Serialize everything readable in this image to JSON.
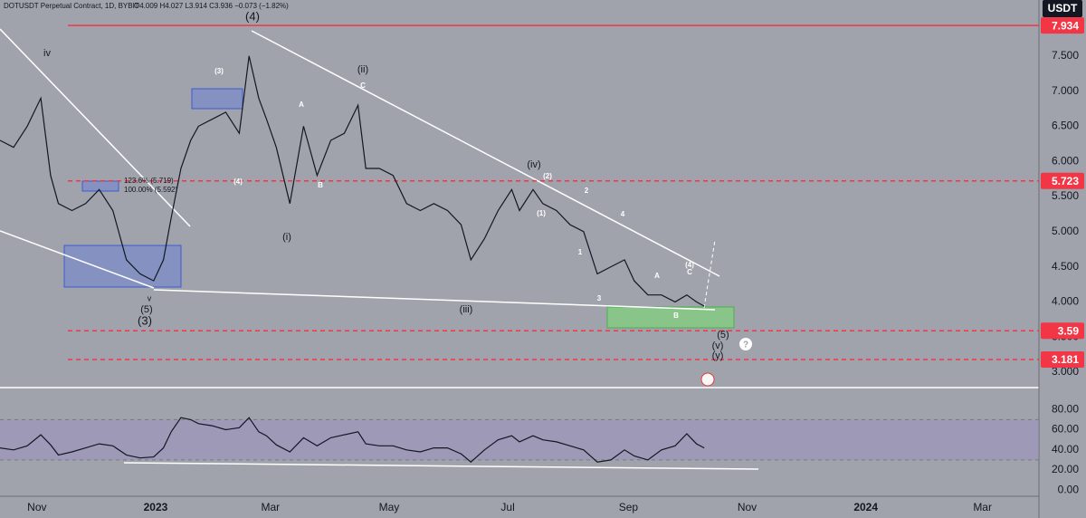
{
  "chart_data": [
    {
      "type": "line",
      "title": "DOTUSDT Perpetual Contract, 1D, BYBIT",
      "subtitle": "O4.009 H4.027 L3.914 C3.936 −0.073 (−1.82%)",
      "currency": "USDT",
      "x": [
        -19,
        -12,
        -5,
        2,
        7,
        11,
        18,
        25,
        32,
        39,
        46,
        53,
        60,
        65,
        69,
        74,
        79,
        83,
        90,
        97,
        104,
        109,
        114,
        118,
        123,
        130,
        137,
        144,
        151,
        158,
        165,
        169,
        176,
        183,
        190,
        197,
        204,
        211,
        218,
        223,
        230,
        237,
        244,
        248,
        255,
        260,
        267,
        274,
        281,
        288,
        295,
        302,
        307,
        314,
        321,
        328,
        334,
        339,
        343
      ],
      "series": [
        {
          "color": "#131722",
          "values": [
            6.3,
            6.2,
            6.5,
            6.9,
            5.8,
            5.4,
            5.3,
            5.4,
            5.6,
            5.3,
            4.6,
            4.4,
            4.3,
            4.6,
            5.2,
            5.9,
            6.3,
            6.5,
            6.6,
            6.7,
            6.4,
            7.5,
            6.9,
            6.6,
            6.2,
            5.4,
            6.5,
            5.8,
            6.3,
            6.4,
            6.8,
            5.9,
            5.9,
            5.8,
            5.4,
            5.3,
            5.4,
            5.3,
            5.1,
            4.6,
            4.9,
            5.3,
            5.6,
            5.3,
            5.6,
            5.4,
            5.3,
            5.1,
            5.0,
            4.4,
            4.5,
            4.6,
            4.3,
            4.1,
            4.1,
            4.0,
            4.1,
            4.0,
            3.94
          ]
        }
      ],
      "xlim": [
        -19,
        515
      ],
      "xticks": [
        {
          "value": 0,
          "label": "Nov"
        },
        {
          "value": 61,
          "label": "2023"
        },
        {
          "value": 120,
          "label": "Mar"
        },
        {
          "value": 181,
          "label": "May"
        },
        {
          "value": 242,
          "label": "Jul"
        },
        {
          "value": 304,
          "label": "Sep"
        },
        {
          "value": 365,
          "label": "Nov"
        },
        {
          "value": 426,
          "label": "2024"
        },
        {
          "value": 486,
          "label": "Mar"
        }
      ],
      "ylim": [
        2.781,
        8.297
      ],
      "yticks": [
        {
          "value": 3,
          "label": "3.000"
        },
        {
          "value": 3.5,
          "label": "3.500"
        },
        {
          "value": 4,
          "label": "4.000"
        },
        {
          "value": 4.5,
          "label": "4.500"
        },
        {
          "value": 5,
          "label": "5.000"
        },
        {
          "value": 5.5,
          "label": "5.500"
        },
        {
          "value": 6,
          "label": "6.000"
        },
        {
          "value": 6.5,
          "label": "6.500"
        },
        {
          "value": 7,
          "label": "7.000"
        },
        {
          "value": 7.5,
          "label": "7.500"
        }
      ],
      "levels": [
        {
          "value": 7.934,
          "style": "solid"
        },
        {
          "value": 5.723,
          "style": "dashed"
        },
        {
          "value": 3.59,
          "style": "dashed"
        },
        {
          "value": 3.181,
          "style": "dashed"
        }
      ],
      "level_color": "#f23645",
      "annotations": [
        "(4)",
        "(ii)",
        "(iv)",
        "iv",
        "(5)",
        "(3)",
        "(i)",
        "(iii)",
        "v",
        "(5)",
        "(v)",
        "(y)",
        "123.6% (5.719)",
        "100.00% (5.592)",
        "A",
        "B",
        "C",
        "(3)",
        "(4)",
        "(2)",
        "(1)",
        "2",
        "1",
        "3",
        "4",
        "A",
        "B",
        "C",
        "(4)",
        "?"
      ]
    },
    {
      "type": "line",
      "x": [
        -19,
        -12,
        -5,
        2,
        7,
        11,
        18,
        25,
        32,
        39,
        46,
        53,
        60,
        65,
        69,
        74,
        79,
        83,
        90,
        97,
        104,
        109,
        114,
        118,
        123,
        130,
        137,
        144,
        151,
        158,
        165,
        169,
        176,
        183,
        190,
        197,
        204,
        211,
        218,
        223,
        230,
        237,
        244,
        248,
        255,
        260,
        267,
        274,
        281,
        288,
        295,
        302,
        307,
        314,
        321,
        328,
        334,
        339,
        343
      ],
      "series": [
        {
          "color": "#131722",
          "values": [
            42,
            40,
            44,
            55,
            45,
            35,
            38,
            42,
            46,
            44,
            35,
            32,
            33,
            42,
            58,
            72,
            70,
            66,
            64,
            60,
            62,
            72,
            58,
            54,
            45,
            38,
            52,
            44,
            52,
            55,
            58,
            46,
            44,
            44,
            40,
            38,
            42,
            42,
            36,
            28,
            40,
            50,
            54,
            48,
            54,
            50,
            48,
            44,
            40,
            28,
            30,
            40,
            34,
            30,
            40,
            44,
            56,
            46,
            42
          ]
        }
      ],
      "xlim": [
        -19,
        515
      ],
      "ylim": [
        -6,
        100
      ],
      "band": [
        30,
        70
      ],
      "yticks": [
        {
          "value": 0,
          "label": "0.00"
        },
        {
          "value": 20,
          "label": "20.00"
        },
        {
          "value": 40,
          "label": "40.00"
        },
        {
          "value": 60,
          "label": "60.00"
        },
        {
          "value": 80,
          "label": "80.00"
        }
      ]
    }
  ]
}
